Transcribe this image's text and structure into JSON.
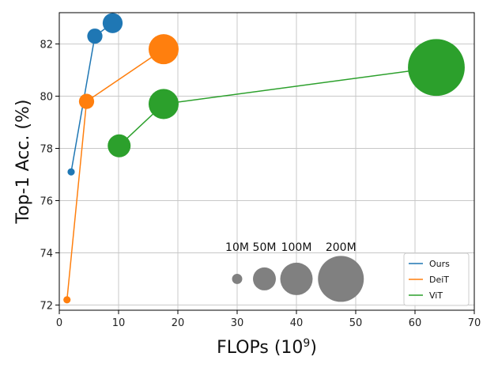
{
  "chart_data": {
    "type": "scatter",
    "xlabel": "FLOPs (10^9)",
    "xlabel_base": "FLOPs (10",
    "xlabel_exp": "9",
    "xlabel_close": ")",
    "ylabel": "Top-1 Acc. (%)",
    "xlim": [
      0,
      70
    ],
    "ylim": [
      71.8,
      83.2
    ],
    "xticks": [
      0,
      10,
      20,
      30,
      40,
      50,
      60,
      70
    ],
    "yticks": [
      72,
      74,
      76,
      78,
      80,
      82
    ],
    "grid": true,
    "legend_position": "bottom-right",
    "series": [
      {
        "name": "Ours",
        "color": "#1f77b4",
        "points": [
          {
            "x": 2.0,
            "y": 77.1,
            "params_m": 5
          },
          {
            "x": 6.0,
            "y": 82.3,
            "params_m": 22
          },
          {
            "x": 9.0,
            "y": 82.8,
            "params_m": 38
          }
        ]
      },
      {
        "name": "DeiT",
        "color": "#ff7f0e",
        "points": [
          {
            "x": 1.3,
            "y": 72.2,
            "params_m": 5
          },
          {
            "x": 4.6,
            "y": 79.8,
            "params_m": 22
          },
          {
            "x": 17.6,
            "y": 81.8,
            "params_m": 86
          }
        ]
      },
      {
        "name": "ViT",
        "color": "#2ca02c",
        "points": [
          {
            "x": 10.1,
            "y": 78.1,
            "params_m": 50
          },
          {
            "x": 17.6,
            "y": 79.7,
            "params_m": 86
          },
          {
            "x": 63.6,
            "y": 81.1,
            "params_m": 307
          }
        ]
      }
    ],
    "size_reference": {
      "color": "#808080",
      "items": [
        {
          "label": "10M",
          "params_m": 10,
          "x": 30.0,
          "y": 73.0
        },
        {
          "label": "50M",
          "params_m": 50,
          "x": 34.6,
          "y": 73.0
        },
        {
          "label": "100M",
          "params_m": 100,
          "x": 40.0,
          "y": 73.0
        },
        {
          "label": "200M",
          "params_m": 200,
          "x": 47.5,
          "y": 73.0
        }
      ]
    }
  }
}
